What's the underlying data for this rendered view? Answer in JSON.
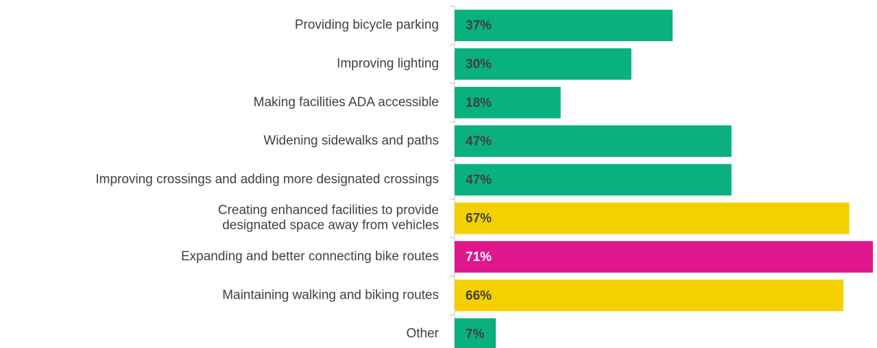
{
  "chart_data": {
    "type": "bar",
    "orientation": "horizontal",
    "categories": [
      "Providing bicycle parking",
      "Improving lighting",
      "Making facilities ADA accessible",
      "Widening sidewalks and paths",
      "Improving crossings and adding more designated crossings",
      "Creating enhanced facilities to provide\ndesignated space away from vehicles",
      "Expanding and better connecting bike routes",
      "Maintaining walking and biking routes",
      "Other"
    ],
    "values": [
      37,
      30,
      18,
      47,
      47,
      67,
      71,
      66,
      7
    ],
    "value_labels": [
      "37%",
      "30%",
      "18%",
      "47%",
      "47%",
      "67%",
      "71%",
      "66%",
      "7%"
    ],
    "colors": [
      "#0bb07f",
      "#0bb07f",
      "#0bb07f",
      "#0bb07f",
      "#0bb07f",
      "#f5d000",
      "#e0168c",
      "#f5d000",
      "#0bb07f"
    ]
  }
}
